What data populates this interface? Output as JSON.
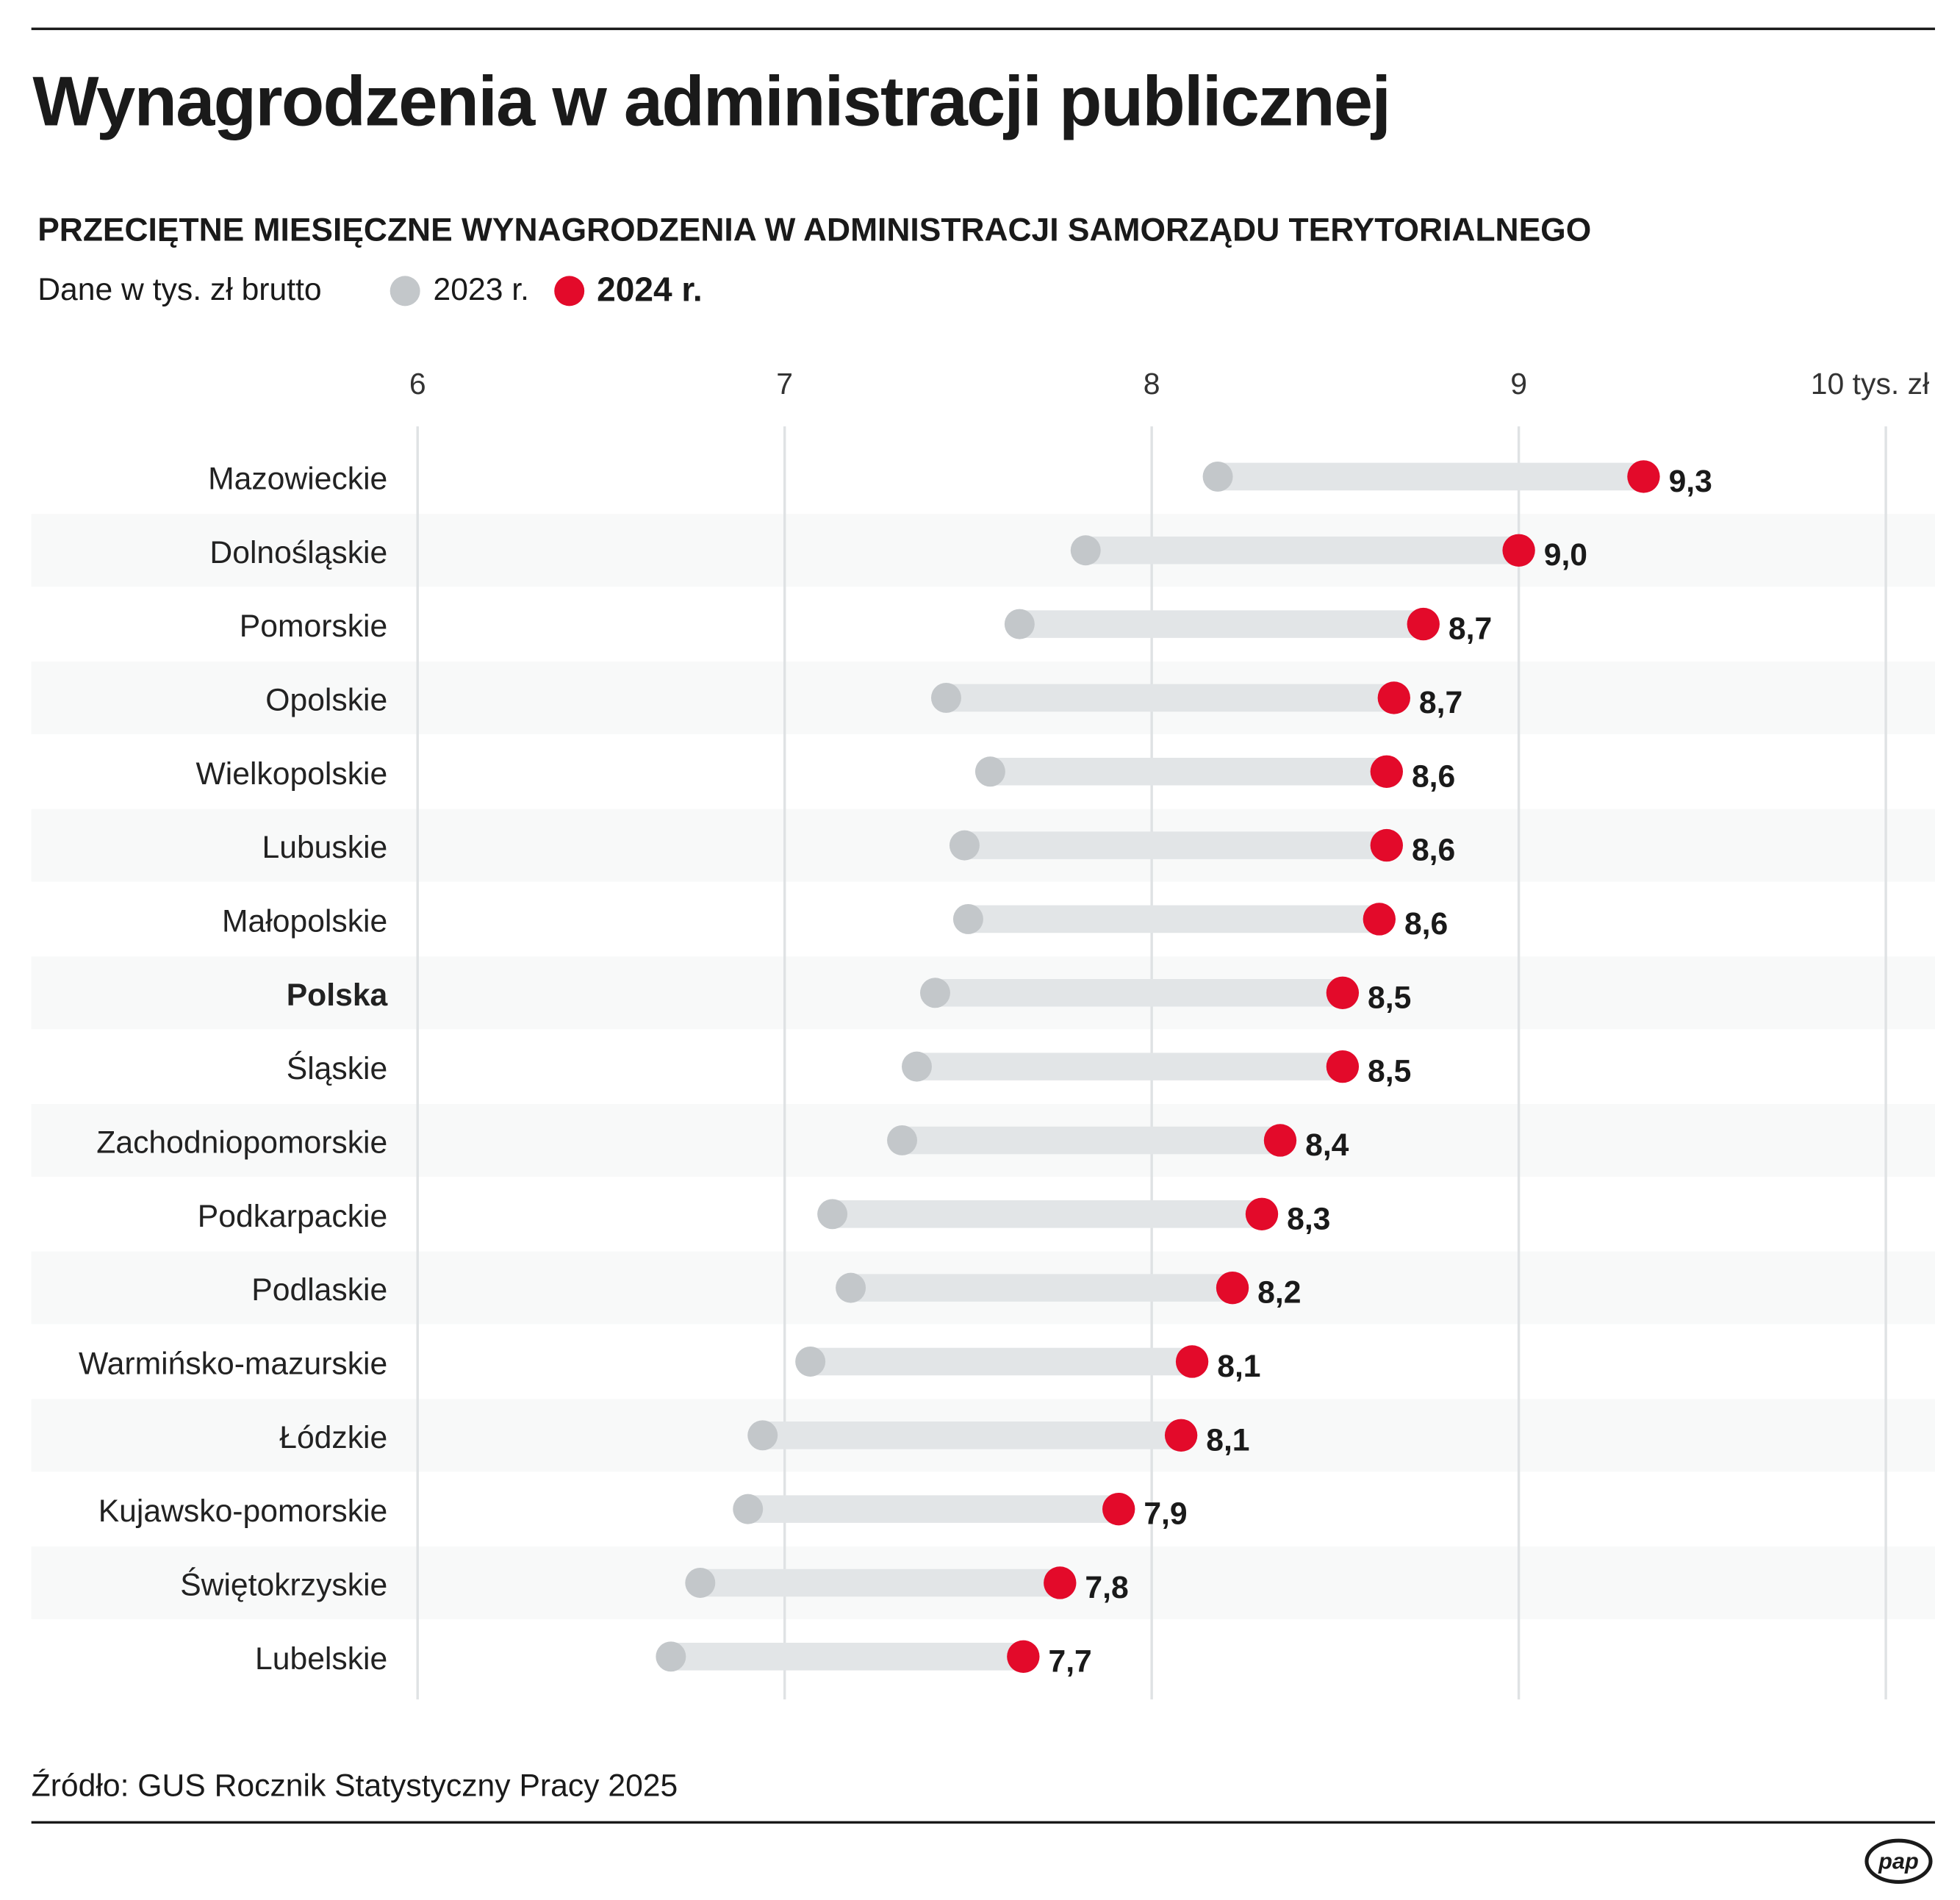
{
  "title": "Wynagrodzenia w administracji publicznej",
  "subtitle": "PRZECIĘTNE MIESIĘCZNE WYNAGRODZENIA W ADMINISTRACJI SAMORZĄDU TERYTORIALNEGO",
  "unit_note": "Dane w tys. zł brutto",
  "source": "Źródło: GUS Rocznik Statystyczny Pracy 2025",
  "logo": "pap",
  "colors": {
    "y2023": "#c3c7ca",
    "y2024": "#e30a2a",
    "bar": "#e2e5e7",
    "band": "#f8f9f9",
    "grid": "#dfe2e4"
  },
  "chart_data": {
    "type": "dumbbell",
    "orientation": "horizontal",
    "xlim": [
      6,
      10
    ],
    "x_ticks": [
      "6",
      "7",
      "8",
      "9",
      "10 tys. zł"
    ],
    "x_tick_values": [
      6,
      7,
      8,
      9,
      10
    ],
    "grid": true,
    "legend_position": "top-left",
    "series": [
      {
        "name": "2023 r.",
        "values": [
          8.18,
          7.82,
          7.64,
          7.44,
          7.56,
          7.49,
          7.5,
          7.41,
          7.36,
          7.32,
          7.13,
          7.18,
          7.07,
          6.94,
          6.9,
          6.77,
          6.69
        ]
      },
      {
        "name": "2024 r.",
        "values": [
          9.34,
          9.0,
          8.74,
          8.66,
          8.64,
          8.64,
          8.62,
          8.52,
          8.52,
          8.35,
          8.3,
          8.22,
          8.11,
          8.08,
          7.91,
          7.75,
          7.65
        ]
      }
    ],
    "categories": [
      "Mazowieckie",
      "Dolnośląskie",
      "Pomorskie",
      "Opolskie",
      "Wielkopolskie",
      "Lubuskie",
      "Małopolskie",
      "Polska",
      "Śląskie",
      "Zachodniopomorskie",
      "Podkarpackie",
      "Podlaskie",
      "Warmińsko-mazurskie",
      "Łódzkie",
      "Kujawsko-pomorskie",
      "Świętokrzyskie",
      "Lubelskie"
    ],
    "highlight": "Polska",
    "data_labels": [
      "9,3",
      "9,0",
      "8,7",
      "8,7",
      "8,6",
      "8,6",
      "8,6",
      "8,5",
      "8,5",
      "8,4",
      "8,3",
      "8,2",
      "8,1",
      "8,1",
      "7,9",
      "7,8",
      "7,7"
    ]
  }
}
